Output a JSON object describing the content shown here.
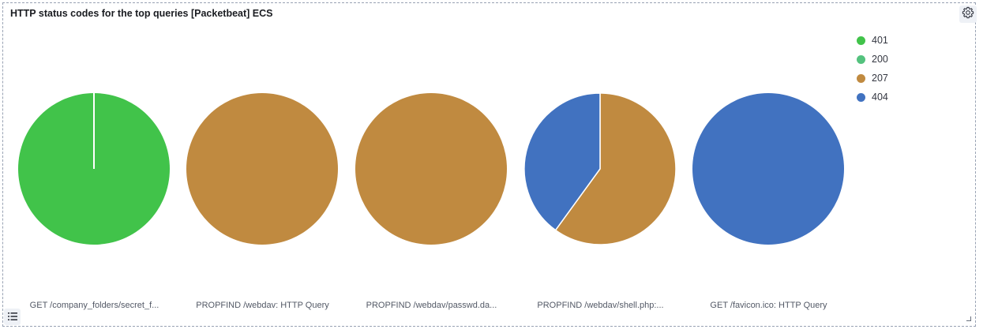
{
  "panel": {
    "title": "HTTP status codes for the top queries [Packetbeat] ECS"
  },
  "icons": {
    "settings": "gear-icon",
    "legend_toggle": "list-icon",
    "resize": "resize-corner-icon"
  },
  "chart_data": {
    "type": "pie",
    "legend": {
      "position": "top-right",
      "entries": [
        {
          "label": "401",
          "color": "#41c34a"
        },
        {
          "label": "200",
          "color": "#54c27e"
        },
        {
          "label": "207",
          "color": "#c08a40"
        },
        {
          "label": "404",
          "color": "#4172c0"
        }
      ]
    },
    "pies": [
      {
        "label": "GET /company_folders/secret_f...",
        "slices": [
          {
            "status": "401",
            "value": 100,
            "color": "#41c34a"
          }
        ],
        "divider": true
      },
      {
        "label": "PROPFIND /webdav: HTTP Query",
        "slices": [
          {
            "status": "207",
            "value": 100,
            "color": "#c08a40"
          }
        ]
      },
      {
        "label": "PROPFIND /webdav/passwd.da...",
        "slices": [
          {
            "status": "207",
            "value": 100,
            "color": "#c08a40"
          }
        ]
      },
      {
        "label": "PROPFIND /webdav/shell.php:...",
        "slices": [
          {
            "status": "207",
            "value": 60,
            "color": "#c08a40"
          },
          {
            "status": "404",
            "value": 40,
            "color": "#4172c0"
          }
        ]
      },
      {
        "label": "GET /favicon.ico: HTTP Query",
        "slices": [
          {
            "status": "404",
            "value": 100,
            "color": "#4172c0"
          }
        ]
      }
    ]
  }
}
